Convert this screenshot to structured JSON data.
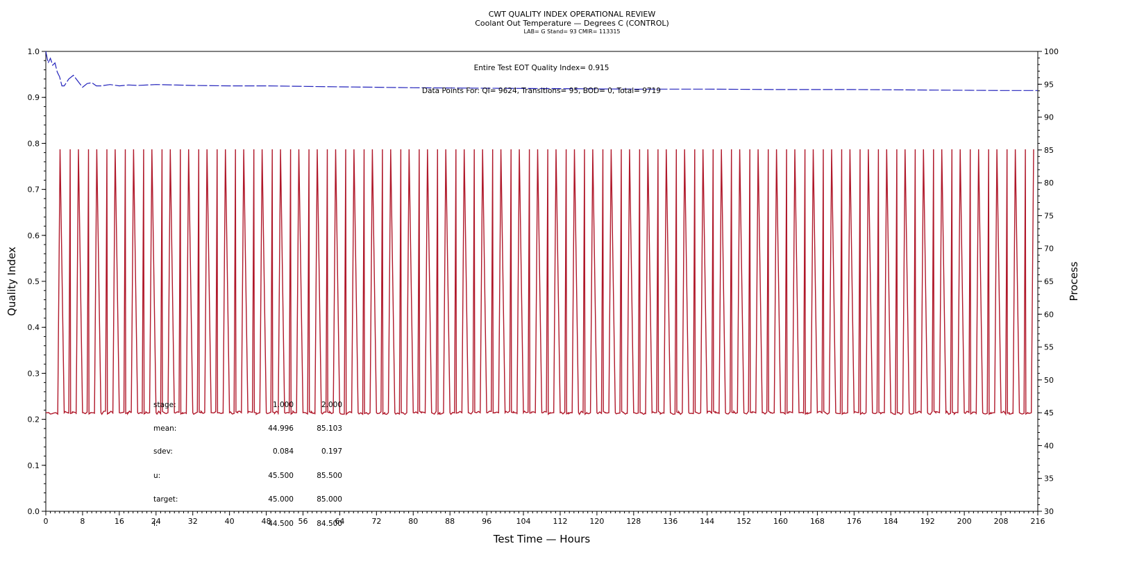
{
  "chart_data": {
    "type": "line",
    "title": "CWT QUALITY INDEX OPERATIONAL REVIEW",
    "subtitle": "Coolant Out Temperature — Degrees C (CONTROL)",
    "subtitle2": "LAB= G Stand= 93 CMIR= 113315",
    "xlabel": "Test Time — Hours",
    "ylabel": "Quality Index",
    "y2label": "Process",
    "xlim": [
      0,
      216
    ],
    "ylim": [
      0.0,
      1.0
    ],
    "y2lim": [
      30,
      100
    ],
    "x_ticks": [
      0,
      8,
      16,
      24,
      32,
      40,
      48,
      56,
      64,
      72,
      80,
      88,
      96,
      104,
      112,
      120,
      128,
      136,
      144,
      152,
      160,
      168,
      176,
      184,
      192,
      200,
      208,
      216
    ],
    "y_ticks": [
      "0.0",
      "0.1",
      "0.2",
      "0.3",
      "0.4",
      "0.5",
      "0.6",
      "0.7",
      "0.8",
      "0.9",
      "1.0"
    ],
    "y2_ticks": [
      30,
      35,
      40,
      45,
      50,
      55,
      60,
      65,
      70,
      75,
      80,
      85,
      90,
      95,
      100
    ],
    "annotations": [
      "Entire Test EOT Quality Index=   0.915",
      "Data Points For: QI=   9624, Transitions=    95, BOD=      0, Total=   9719"
    ],
    "stats_table": {
      "rows": [
        {
          "label": "stage:",
          "v1": "1.000",
          "v2": "2.000"
        },
        {
          "label": "mean:",
          "v1": "44.996",
          "v2": "85.103"
        },
        {
          "label": "sdev:",
          "v1": "0.084",
          "v2": "0.197"
        },
        {
          "label": "u:",
          "v1": "45.500",
          "v2": "85.500"
        },
        {
          "label": "target:",
          "v1": "45.000",
          "v2": "85.000"
        },
        {
          "label": "l:",
          "v1": "44.500",
          "v2": "84.500"
        }
      ]
    },
    "series": [
      {
        "name": "Quality Index",
        "axis": "left",
        "style": "dashed",
        "color": "#2222bb",
        "x": [
          0,
          0.5,
          1,
          1.5,
          2,
          2.5,
          3,
          3.5,
          4,
          5,
          6,
          7,
          8,
          9,
          10,
          11,
          12,
          14,
          16,
          18,
          20,
          24,
          28,
          32,
          40,
          48,
          56,
          64,
          72,
          80,
          96,
          112,
          128,
          144,
          160,
          176,
          192,
          208,
          216
        ],
        "values": [
          1.0,
          0.975,
          0.985,
          0.97,
          0.975,
          0.955,
          0.945,
          0.925,
          0.925,
          0.94,
          0.948,
          0.935,
          0.922,
          0.93,
          0.932,
          0.925,
          0.925,
          0.928,
          0.925,
          0.927,
          0.926,
          0.928,
          0.927,
          0.926,
          0.925,
          0.925,
          0.924,
          0.923,
          0.922,
          0.921,
          0.92,
          0.919,
          0.918,
          0.918,
          0.917,
          0.917,
          0.916,
          0.915,
          0.915
        ]
      },
      {
        "name": "Process",
        "axis": "right",
        "style": "solid",
        "color": "#b0182a",
        "pattern": "square_wave",
        "low": 45.0,
        "high": 85.1,
        "period_hours": 4.0,
        "low_start": 0,
        "rise_start": 2.6,
        "high_start": 3.1,
        "fall_start": 5.3,
        "fall_end": 5.8,
        "x_end": 216
      }
    ]
  }
}
